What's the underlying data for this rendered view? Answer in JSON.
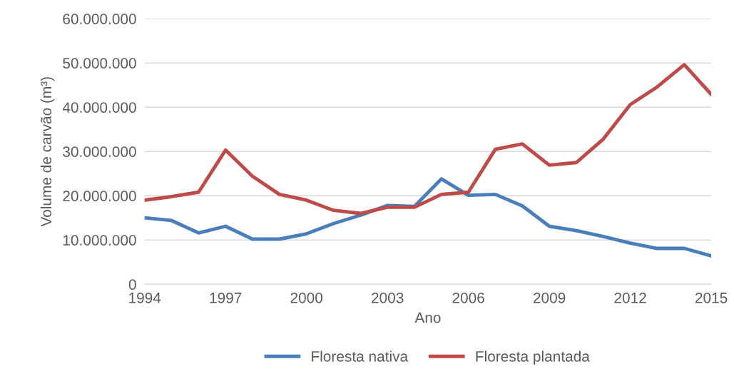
{
  "chart_data": {
    "type": "line",
    "xlabel": "Ano",
    "ylabel": "Volume de carvão (m³)",
    "x": [
      1994,
      1995,
      1996,
      1997,
      1998,
      1999,
      2000,
      2001,
      2002,
      2003,
      2004,
      2005,
      2006,
      2007,
      2008,
      2009,
      2010,
      2011,
      2012,
      2013,
      2014,
      2015
    ],
    "series": [
      {
        "name": "Floresta nativa",
        "color": "#4a7ebb",
        "values": [
          15000000,
          14400000,
          11600000,
          13100000,
          10200000,
          10200000,
          11400000,
          13700000,
          15600000,
          17800000,
          17600000,
          23800000,
          20100000,
          20300000,
          17700000,
          13100000,
          12100000,
          10800000,
          9300000,
          8100000,
          8100000,
          6400000
        ]
      },
      {
        "name": "Floresta plantada",
        "color": "#be4b48",
        "values": [
          19000000,
          19800000,
          20800000,
          30300000,
          24400000,
          20300000,
          19000000,
          16700000,
          16000000,
          17400000,
          17400000,
          20300000,
          20800000,
          30500000,
          31700000,
          26900000,
          27500000,
          32800000,
          40600000,
          44600000,
          49600000,
          42900000
        ]
      }
    ],
    "xlim": [
      1994,
      2015
    ],
    "xticks": [
      1994,
      1997,
      2000,
      2003,
      2006,
      2009,
      2012,
      2015
    ],
    "ylim": [
      0,
      60000000
    ],
    "yticks": [
      0,
      {
        "value": 10000000,
        "label": "10.000.000"
      },
      {
        "value": 20000000,
        "label": "20.000.000"
      },
      {
        "value": 30000000,
        "label": "30.000.000"
      },
      {
        "value": 40000000,
        "label": "40.000.000"
      },
      {
        "value": 50000000,
        "label": "50.000.000"
      },
      {
        "value": 60000000,
        "label": "60.000.000"
      }
    ],
    "grid": "y",
    "legend": "bottom",
    "marker": "none",
    "line_style": "solid"
  }
}
